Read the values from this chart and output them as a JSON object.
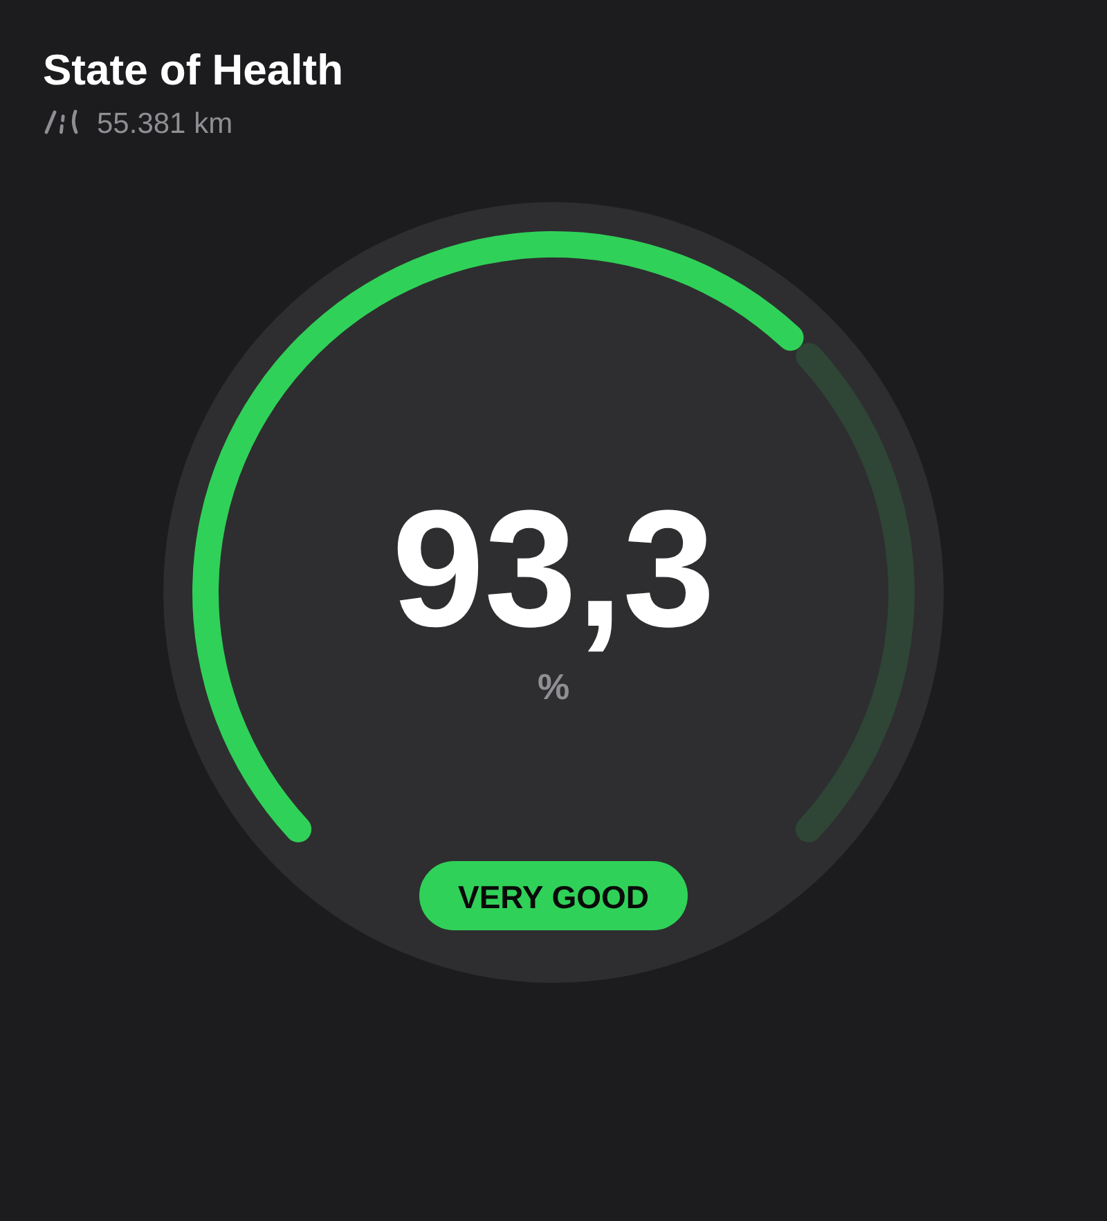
{
  "chart_data": {
    "type": "donut",
    "title": "State of Health",
    "subtitle": "55.381 km",
    "categories": [
      null,
      null
    ],
    "values": [
      66.7,
      33.3
    ],
    "colors": [
      "#30d158",
      "#2f4536"
    ],
    "annotations": [
      "93,3",
      "%",
      "VERY GOOD"
    ]
  }
}
